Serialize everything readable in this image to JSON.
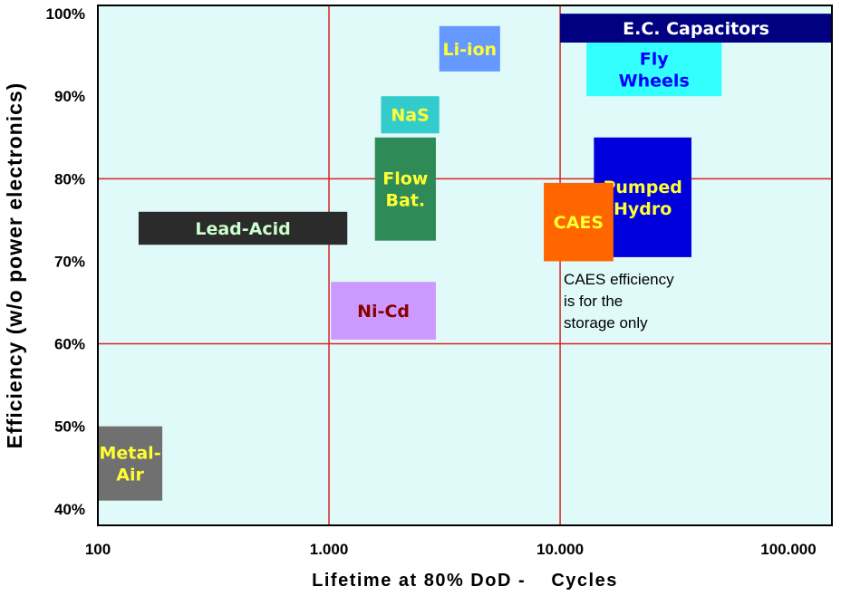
{
  "chart_data": {
    "type": "range-boxes",
    "xlabel": "Lifetime at 80% DoD -    Cycles",
    "ylabel": "Efficiency (w/o power electronics)",
    "x_scale": "log",
    "xlim": [
      100,
      150000
    ],
    "ylim": [
      38,
      101
    ],
    "x_ticks": [
      {
        "value": 100,
        "label": "100"
      },
      {
        "value": 1000,
        "label": "1.000"
      },
      {
        "value": 10000,
        "label": "10.000"
      },
      {
        "value": 100000,
        "label": "100.000"
      }
    ],
    "y_ticks": [
      {
        "value": 40,
        "label": "40%"
      },
      {
        "value": 50,
        "label": "50%"
      },
      {
        "value": 60,
        "label": "60%"
      },
      {
        "value": 70,
        "label": "70%"
      },
      {
        "value": 80,
        "label": "80%"
      },
      {
        "value": 90,
        "label": "90%"
      },
      {
        "value": 100,
        "label": "100%"
      }
    ],
    "gridlines": {
      "x": [
        1000,
        10000
      ],
      "y": [
        60,
        80
      ],
      "color": "#dd2222"
    },
    "background": "#e0fafa",
    "boxes": [
      {
        "name": "metal-air",
        "label_lines": [
          "Metal-",
          "Air"
        ],
        "x": [
          100,
          190
        ],
        "y": [
          41,
          50
        ],
        "fill": "#707070",
        "text_color": "#ffff33"
      },
      {
        "name": "lead-acid",
        "label_lines": [
          "Lead-Acid"
        ],
        "x": [
          150,
          1200
        ],
        "y": [
          72,
          76
        ],
        "fill": "#2b2b2b",
        "text_color": "#ccffcc"
      },
      {
        "name": "ni-cd",
        "label_lines": [
          "Ni-Cd"
        ],
        "x": [
          1020,
          2900
        ],
        "y": [
          60.5,
          67.5
        ],
        "fill": "#cc99ff",
        "text_color": "#880000"
      },
      {
        "name": "flow-battery",
        "label_lines": [
          "Flow",
          "Bat."
        ],
        "x": [
          1580,
          2900
        ],
        "y": [
          72.5,
          85
        ],
        "fill": "#2e8b57",
        "text_color": "#ffff33"
      },
      {
        "name": "nas",
        "label_lines": [
          "NaS"
        ],
        "x": [
          1680,
          3000
        ],
        "y": [
          85.5,
          90
        ],
        "fill": "#33cccc",
        "text_color": "#ffff33"
      },
      {
        "name": "li-ion",
        "label_lines": [
          "Li-ion"
        ],
        "x": [
          3000,
          5500
        ],
        "y": [
          93,
          98.5
        ],
        "fill": "#6699ff",
        "text_color": "#ffff33"
      },
      {
        "name": "ec-capacitors",
        "label_lines": [
          "E.C. Capacitors"
        ],
        "x": [
          10000,
          150000
        ],
        "y": [
          96.5,
          100
        ],
        "fill": "#000080",
        "text_color": "#ffffff"
      },
      {
        "name": "fly-wheels",
        "label_lines": [
          "Fly",
          "Wheels"
        ],
        "x": [
          13000,
          50000
        ],
        "y": [
          90,
          96.5
        ],
        "fill": "#33ffff",
        "text_color": "#0000ff"
      },
      {
        "name": "pumped-hydro",
        "label_lines": [
          "Pumped",
          "Hydro"
        ],
        "x": [
          14000,
          37000
        ],
        "y": [
          70.5,
          85
        ],
        "fill": "#0000dd",
        "text_color": "#ffff33"
      },
      {
        "name": "caes",
        "label_lines": [
          "CAES"
        ],
        "x": [
          8500,
          17000
        ],
        "y": [
          70,
          79.5
        ],
        "fill": "#ff6600",
        "text_color": "#ffff33"
      }
    ],
    "annotation": {
      "lines": [
        "CAES efficiency",
        "is for the",
        "storage only"
      ],
      "x": 10000,
      "y": 68.5
    }
  }
}
